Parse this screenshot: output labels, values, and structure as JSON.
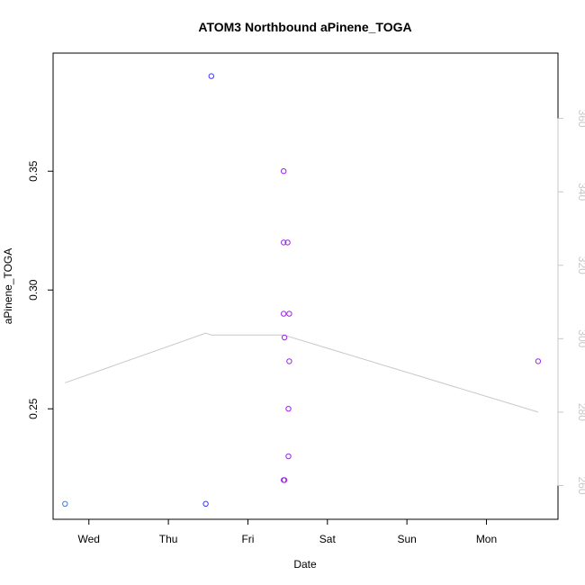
{
  "chart_data": {
    "type": "scatter",
    "title": "ATOM3 Northbound aPinene_TOGA",
    "xlabel": "Date",
    "ylabel": "aPinene_TOGA",
    "x_ticks": [
      "Wed",
      "Thu",
      "Fri",
      "Sat",
      "Sun",
      "Mon"
    ],
    "x_tick_values": [
      1,
      2,
      3,
      4,
      5,
      6
    ],
    "xlim": [
      0.55,
      6.9
    ],
    "ylim": [
      0.2035,
      0.3997
    ],
    "y_ticks": [
      0.25,
      0.3,
      0.35
    ],
    "y_tick_labels": [
      "0.25",
      "0.30",
      "0.35"
    ],
    "right_axis": {
      "ylim": [
        250.8,
        377.8
      ],
      "ticks": [
        260,
        280,
        300,
        320,
        340,
        360
      ],
      "tick_labels": [
        "260",
        "280",
        "300",
        "320",
        "340",
        "360"
      ],
      "color": "#c8c8c8"
    },
    "points": [
      {
        "x": 0.7,
        "y": 0.21,
        "color": "#3d7fd9"
      },
      {
        "x": 2.47,
        "y": 0.21,
        "color": "#3a3aff"
      },
      {
        "x": 2.54,
        "y": 0.39,
        "color": "#3a3aff"
      },
      {
        "x": 3.45,
        "y": 0.35,
        "color": "#a020f0"
      },
      {
        "x": 3.45,
        "y": 0.32,
        "color": "#a020f0"
      },
      {
        "x": 3.5,
        "y": 0.32,
        "color": "#a020f0"
      },
      {
        "x": 3.45,
        "y": 0.29,
        "color": "#a020f0"
      },
      {
        "x": 3.52,
        "y": 0.29,
        "color": "#a020f0"
      },
      {
        "x": 3.46,
        "y": 0.28,
        "color": "#a020f0"
      },
      {
        "x": 3.52,
        "y": 0.27,
        "color": "#a020f0"
      },
      {
        "x": 3.51,
        "y": 0.25,
        "color": "#a020f0"
      },
      {
        "x": 3.51,
        "y": 0.23,
        "color": "#a020f0"
      },
      {
        "x": 3.45,
        "y": 0.22,
        "color": "#a020f0"
      },
      {
        "x": 3.46,
        "y": 0.22,
        "color": "#a020f0"
      },
      {
        "x": 6.65,
        "y": 0.27,
        "color": "#a020f0"
      }
    ],
    "line": {
      "color": "#c8c8c8",
      "x": [
        0.7,
        2.47,
        2.54,
        3.45,
        6.65
      ],
      "y": [
        288,
        301.5,
        301.0,
        301.0,
        280
      ]
    },
    "grid": false,
    "legend": "none"
  }
}
